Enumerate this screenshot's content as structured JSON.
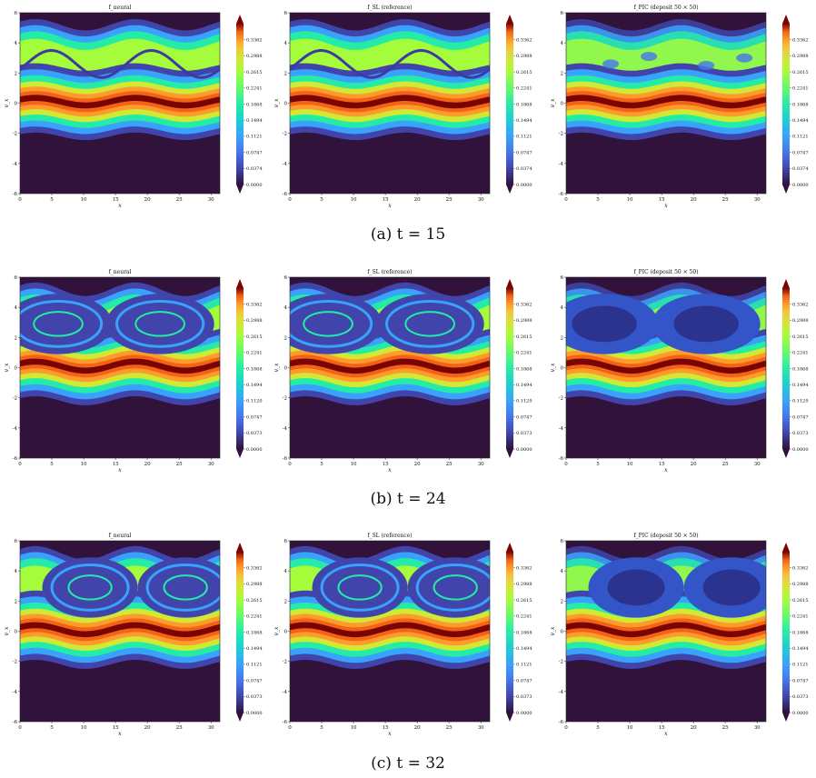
{
  "figure": {
    "rows": [
      {
        "caption": "(a) t = 15"
      },
      {
        "caption": "(b) t = 24"
      },
      {
        "caption": "(c) t = 32"
      }
    ]
  },
  "chart_data": [
    {
      "type": "heatmap",
      "row": 0,
      "title": "f_neural",
      "xlabel": "x",
      "ylabel": "v_x",
      "xlim": [
        0,
        31.4
      ],
      "ylim": [
        -6,
        6
      ],
      "xticks": [
        "0",
        "5",
        "10",
        "15",
        "20",
        "25",
        "30"
      ],
      "yticks": [
        "-6",
        "-4",
        "-2",
        "0",
        "2",
        "4",
        "6"
      ],
      "colorbar": [
        "0.0000",
        "0.0374",
        "0.0747",
        "0.1121",
        "0.1494",
        "0.1868",
        "0.2241",
        "0.2615",
        "0.2988",
        "0.3362"
      ],
      "colormap": "turbo",
      "t": 15,
      "variant": "neural"
    },
    {
      "type": "heatmap",
      "row": 0,
      "title": "f_SL (reference)",
      "xlabel": "x",
      "ylabel": "v_x",
      "xlim": [
        0,
        31.4
      ],
      "ylim": [
        -6,
        6
      ],
      "xticks": [
        "0",
        "5",
        "10",
        "15",
        "20",
        "25",
        "30"
      ],
      "yticks": [
        "-6",
        "-4",
        "-2",
        "0",
        "2",
        "4",
        "6"
      ],
      "colorbar": [
        "0.0000",
        "0.0374",
        "0.0747",
        "0.1121",
        "0.1494",
        "0.1868",
        "0.2241",
        "0.2615",
        "0.2988",
        "0.3362"
      ],
      "colormap": "turbo",
      "t": 15,
      "variant": "reference"
    },
    {
      "type": "heatmap",
      "row": 0,
      "title": "f_PIC (deposit 50 × 50)",
      "xlabel": "x",
      "ylabel": "v_x",
      "xlim": [
        0,
        31.4
      ],
      "ylim": [
        -6,
        6
      ],
      "xticks": [
        "0",
        "5",
        "10",
        "15",
        "20",
        "25",
        "30"
      ],
      "yticks": [
        "-6",
        "-4",
        "-2",
        "0",
        "2",
        "4",
        "6"
      ],
      "colorbar": [
        "0.0000",
        "0.0374",
        "0.0747",
        "0.1121",
        "0.1494",
        "0.1868",
        "0.2241",
        "0.2615",
        "0.2988",
        "0.3362"
      ],
      "colormap": "turbo",
      "t": 15,
      "variant": "pic"
    },
    {
      "type": "heatmap",
      "row": 1,
      "title": "f_neural",
      "xlabel": "x",
      "ylabel": "v_x",
      "xlim": [
        0,
        31.4
      ],
      "ylim": [
        -6,
        6
      ],
      "xticks": [
        "0",
        "5",
        "10",
        "15",
        "20",
        "25",
        "30"
      ],
      "yticks": [
        "-6",
        "-4",
        "-2",
        "0",
        "2",
        "4",
        "6"
      ],
      "colorbar": [
        "0.0000",
        "0.0373",
        "0.0747",
        "0.1120",
        "0.1494",
        "0.1868",
        "0.2241",
        "0.2615",
        "0.2988",
        "0.3362"
      ],
      "colormap": "turbo",
      "t": 24,
      "variant": "neural"
    },
    {
      "type": "heatmap",
      "row": 1,
      "title": "f_SL (reference)",
      "xlabel": "x",
      "ylabel": "v_x",
      "xlim": [
        0,
        31.4
      ],
      "ylim": [
        -6,
        6
      ],
      "xticks": [
        "0",
        "5",
        "10",
        "15",
        "20",
        "25",
        "30"
      ],
      "yticks": [
        "-6",
        "-4",
        "-2",
        "0",
        "2",
        "4",
        "6"
      ],
      "colorbar": [
        "0.0000",
        "0.0373",
        "0.0747",
        "0.1120",
        "0.1494",
        "0.1868",
        "0.2241",
        "0.2615",
        "0.2988",
        "0.3362"
      ],
      "colormap": "turbo",
      "t": 24,
      "variant": "reference"
    },
    {
      "type": "heatmap",
      "row": 1,
      "title": "f_PIC (deposit 50 × 50)",
      "xlabel": "x",
      "ylabel": "v_x",
      "xlim": [
        0,
        31.4
      ],
      "ylim": [
        -6,
        6
      ],
      "xticks": [
        "0",
        "5",
        "10",
        "15",
        "20",
        "25",
        "30"
      ],
      "yticks": [
        "-6",
        "-4",
        "-2",
        "0",
        "2",
        "4",
        "6"
      ],
      "colorbar": [
        "0.0000",
        "0.0373",
        "0.0747",
        "0.1120",
        "0.1494",
        "0.1868",
        "0.2241",
        "0.2615",
        "0.2988",
        "0.3362"
      ],
      "colormap": "turbo",
      "t": 24,
      "variant": "pic"
    },
    {
      "type": "heatmap",
      "row": 2,
      "title": "f_neural",
      "xlabel": "x",
      "ylabel": "v_x",
      "xlim": [
        0,
        31.4
      ],
      "ylim": [
        -6,
        6
      ],
      "xticks": [
        "0",
        "5",
        "10",
        "15",
        "20",
        "25",
        "30"
      ],
      "yticks": [
        "-6",
        "-4",
        "-2",
        "0",
        "2",
        "4",
        "6"
      ],
      "colorbar": [
        "0.0000",
        "0.0373",
        "0.0747",
        "0.1121",
        "0.1494",
        "0.1868",
        "0.2241",
        "0.2615",
        "0.2988",
        "0.3362"
      ],
      "colormap": "turbo",
      "t": 32,
      "variant": "neural"
    },
    {
      "type": "heatmap",
      "row": 2,
      "title": "f_SL (reference)",
      "xlabel": "x",
      "ylabel": "v_x",
      "xlim": [
        0,
        31.4
      ],
      "ylim": [
        -6,
        6
      ],
      "xticks": [
        "0",
        "5",
        "10",
        "15",
        "20",
        "25",
        "30"
      ],
      "yticks": [
        "-6",
        "-4",
        "-2",
        "0",
        "2",
        "4",
        "6"
      ],
      "colorbar": [
        "0.0000",
        "0.0373",
        "0.0747",
        "0.1121",
        "0.1494",
        "0.1868",
        "0.2241",
        "0.2615",
        "0.2988",
        "0.3362"
      ],
      "colormap": "turbo",
      "t": 32,
      "variant": "reference"
    },
    {
      "type": "heatmap",
      "row": 2,
      "title": "f_PIC (deposit 50 × 50)",
      "xlabel": "x",
      "ylabel": "v_x",
      "xlim": [
        0,
        31.4
      ],
      "ylim": [
        -6,
        6
      ],
      "xticks": [
        "0",
        "5",
        "10",
        "15",
        "20",
        "25",
        "30"
      ],
      "yticks": [
        "-6",
        "-4",
        "-2",
        "0",
        "2",
        "4",
        "6"
      ],
      "colorbar": [
        "0.0000",
        "0.0373",
        "0.0747",
        "0.1121",
        "0.1494",
        "0.1868",
        "0.2241",
        "0.2615",
        "0.2988",
        "0.3362"
      ],
      "colormap": "turbo",
      "t": 32,
      "variant": "pic"
    }
  ]
}
